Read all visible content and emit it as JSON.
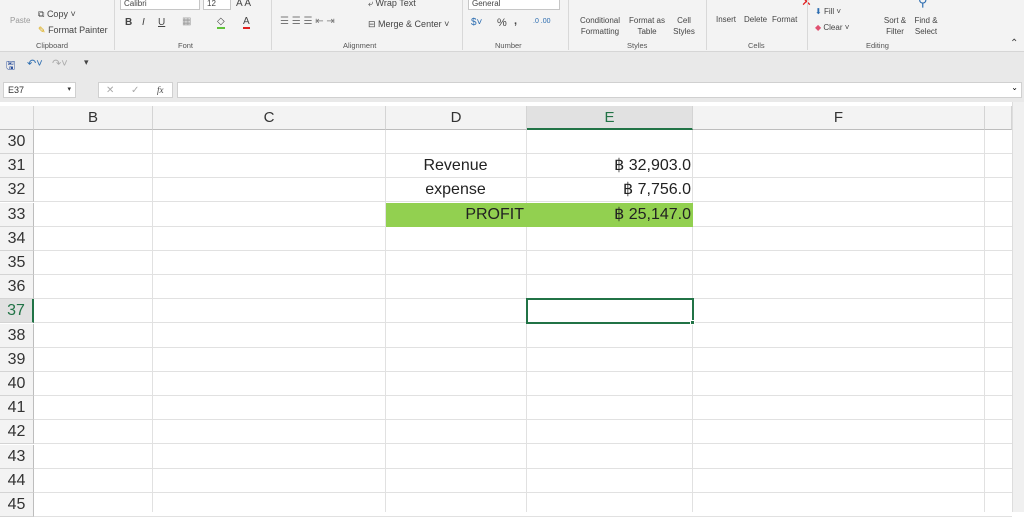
{
  "ribbon": {
    "clipboard": {
      "paste": "Paste",
      "copy": "Copy",
      "format_painter": "Format Painter",
      "label": "Clipboard"
    },
    "font": {
      "name": "Calibri",
      "size": "12",
      "bold": "B",
      "italic": "I",
      "underline": "U",
      "label": "Font"
    },
    "alignment": {
      "wrap_text": "Wrap Text",
      "merge_center": "Merge & Center",
      "label": "Alignment"
    },
    "number": {
      "format": "General",
      "percent": "%",
      "comma": ",",
      "label": "Number"
    },
    "styles": {
      "conditional": "Conditional Formatting",
      "format_table": "Format as Table",
      "cell_styles": "Cell Styles",
      "label": "Styles"
    },
    "cells": {
      "insert": "Insert",
      "delete": "Delete",
      "format": "Format",
      "label": "Cells"
    },
    "editing": {
      "fill": "Fill",
      "clear": "Clear",
      "sort_filter": "Sort & Filter",
      "find_select": "Find & Select",
      "label": "Editing"
    }
  },
  "formula_bar": {
    "name_box": "E37",
    "fx": "fx",
    "value": ""
  },
  "sheet": {
    "columns": [
      "B",
      "C",
      "D",
      "E",
      "F"
    ],
    "selected_column": "E",
    "rows": [
      "30",
      "31",
      "32",
      "33",
      "34",
      "35",
      "36",
      "37",
      "38",
      "39",
      "40",
      "41",
      "42",
      "43",
      "44",
      "45"
    ],
    "selected_row": "37",
    "cells": {
      "D31": "Revenue",
      "E31": "฿ 32,903.0",
      "D32": "expense",
      "E32": "฿ 7,756.0",
      "D33": "PROFIT",
      "E33": "฿ 25,147.0"
    },
    "highlight_color": "#92d050",
    "accent": "#217346"
  }
}
